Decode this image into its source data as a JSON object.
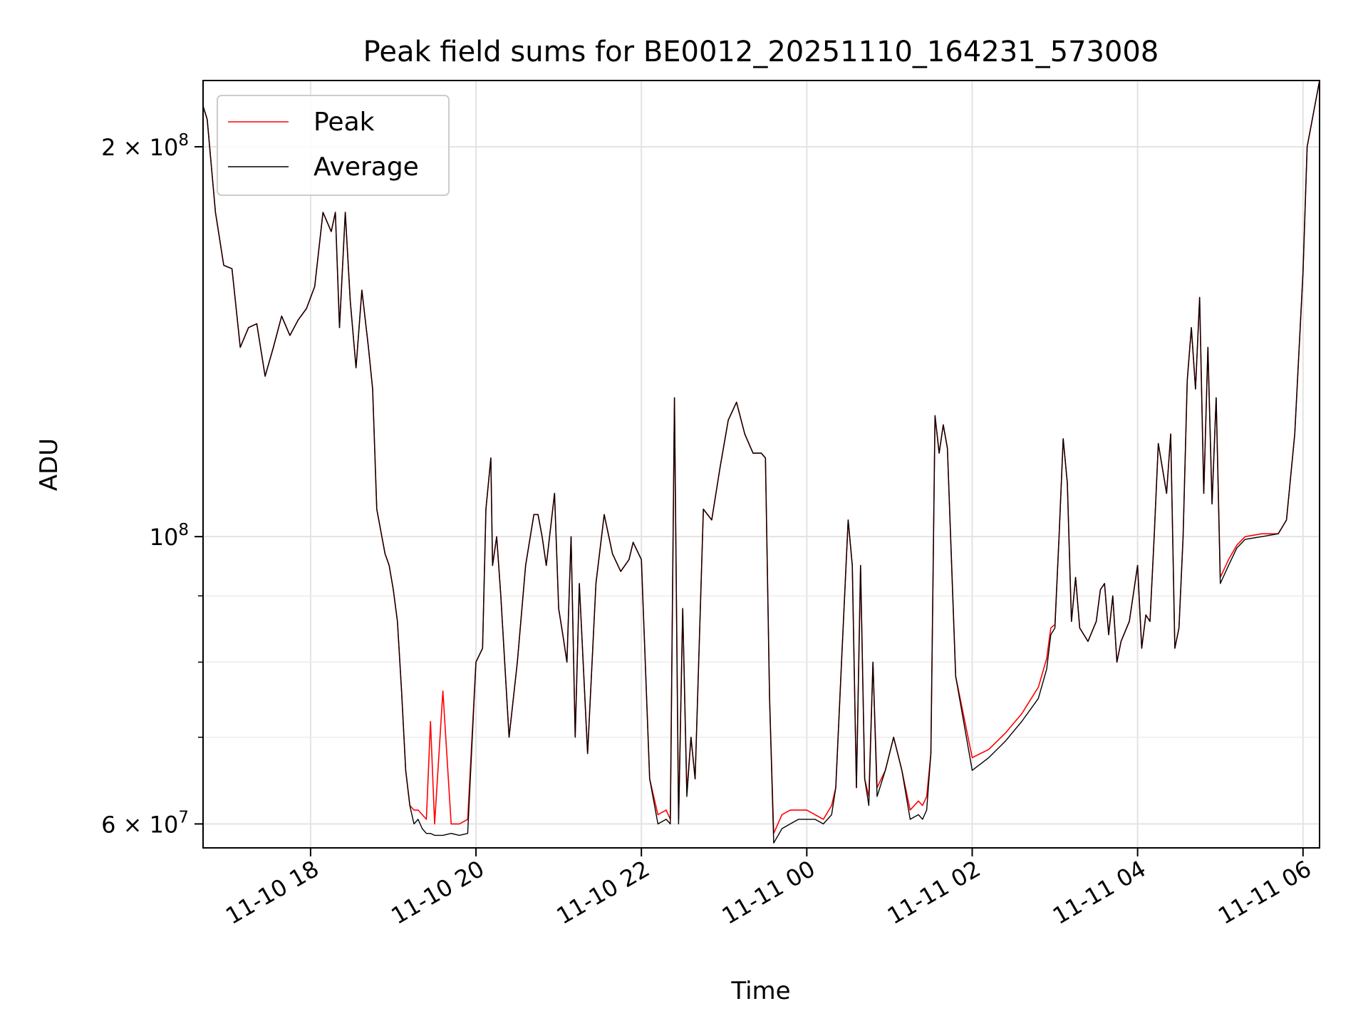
{
  "chart_data": {
    "type": "line",
    "title": "Peak field sums for BE0012_20251110_164231_573008",
    "xlabel": "Time",
    "ylabel": "ADU",
    "yscale": "log",
    "xlim_hours": [
      16.7,
      30.2
    ],
    "ylim": [
      57500000,
      225000000
    ],
    "grid": true,
    "legend_position": "upper-left",
    "x_ticks": [
      {
        "hour": 18,
        "label": "11-10 18"
      },
      {
        "hour": 20,
        "label": "11-10 20"
      },
      {
        "hour": 22,
        "label": "11-10 22"
      },
      {
        "hour": 24,
        "label": "11-11 00"
      },
      {
        "hour": 26,
        "label": "11-11 02"
      },
      {
        "hour": 28,
        "label": "11-11 04"
      },
      {
        "hour": 30,
        "label": "11-11 06"
      }
    ],
    "y_ticks": [
      {
        "value": 60000000,
        "mantissa": "6",
        "exp": "7",
        "base": "10"
      },
      {
        "value": 100000000,
        "mantissa": "",
        "exp": "8",
        "base": "10"
      },
      {
        "value": 200000000,
        "mantissa": "2",
        "exp": "8",
        "base": "10"
      }
    ],
    "y_minor_ticks": [
      70000000,
      80000000,
      90000000
    ],
    "series": [
      {
        "name": "Peak",
        "color": "#ff0000"
      },
      {
        "name": "Average",
        "color": "#000000"
      }
    ],
    "x_hours": [
      16.7,
      16.75,
      16.85,
      16.95,
      17.05,
      17.15,
      17.25,
      17.35,
      17.45,
      17.55,
      17.65,
      17.75,
      17.85,
      17.95,
      18.05,
      18.15,
      18.25,
      18.3,
      18.35,
      18.42,
      18.48,
      18.55,
      18.62,
      18.7,
      18.75,
      18.8,
      18.9,
      18.95,
      19.0,
      19.05,
      19.1,
      19.15,
      19.2,
      19.25,
      19.3,
      19.35,
      19.4,
      19.45,
      19.5,
      19.6,
      19.7,
      19.8,
      19.9,
      20.0,
      20.08,
      20.12,
      20.18,
      20.2,
      20.25,
      20.3,
      20.4,
      20.5,
      20.6,
      20.7,
      20.75,
      20.8,
      20.85,
      20.95,
      21.0,
      21.05,
      21.1,
      21.15,
      21.2,
      21.25,
      21.35,
      21.45,
      21.55,
      21.65,
      21.75,
      21.85,
      21.9,
      22.0,
      22.1,
      22.2,
      22.3,
      22.35,
      22.4,
      22.45,
      22.5,
      22.55,
      22.6,
      22.65,
      22.75,
      22.85,
      22.95,
      23.05,
      23.15,
      23.25,
      23.35,
      23.45,
      23.5,
      23.55,
      23.6,
      23.7,
      23.8,
      23.9,
      24.0,
      24.1,
      24.2,
      24.3,
      24.35,
      24.42,
      24.5,
      24.55,
      24.6,
      24.65,
      24.7,
      24.75,
      24.8,
      24.85,
      24.95,
      25.05,
      25.15,
      25.25,
      25.35,
      25.4,
      25.45,
      25.5,
      25.55,
      25.6,
      25.65,
      25.7,
      25.8,
      26.0,
      26.2,
      26.4,
      26.6,
      26.8,
      26.9,
      26.95,
      27.0,
      27.05,
      27.1,
      27.15,
      27.2,
      27.25,
      27.3,
      27.4,
      27.5,
      27.55,
      27.6,
      27.65,
      27.7,
      27.75,
      27.8,
      27.9,
      28.0,
      28.05,
      28.1,
      28.15,
      28.2,
      28.25,
      28.35,
      28.4,
      28.45,
      28.5,
      28.55,
      28.6,
      28.65,
      28.7,
      28.75,
      28.8,
      28.85,
      28.9,
      28.95,
      29.0,
      29.1,
      29.2,
      29.3,
      29.5,
      29.7,
      29.8,
      29.9,
      30.0,
      30.05,
      30.2
    ],
    "average_values": [
      215000000,
      210000000,
      178000000,
      162000000,
      161000000,
      140000000,
      145000000,
      146000000,
      133000000,
      140000000,
      148000000,
      143000000,
      147000000,
      150000000,
      156000000,
      178000000,
      172000000,
      178000000,
      145000000,
      178000000,
      152000000,
      135000000,
      155000000,
      140000000,
      130000000,
      105000000,
      97000000,
      95000000,
      91000000,
      86000000,
      76000000,
      66000000,
      62000000,
      60000000,
      60500000,
      59500000,
      59000000,
      59000000,
      58800000,
      58800000,
      59000000,
      58800000,
      59000000,
      80000000,
      82000000,
      105000000,
      115000000,
      95000000,
      100000000,
      90000000,
      70000000,
      80000000,
      95000000,
      104000000,
      104000000,
      100000000,
      95000000,
      108000000,
      88000000,
      84000000,
      80000000,
      100000000,
      70000000,
      92000000,
      68000000,
      92000000,
      104000000,
      97000000,
      94000000,
      96000000,
      99000000,
      96000000,
      65000000,
      60000000,
      60500000,
      60000000,
      128000000,
      60000000,
      88000000,
      63000000,
      70000000,
      65000000,
      105000000,
      103000000,
      113000000,
      123000000,
      127000000,
      120000000,
      116000000,
      116000000,
      115000000,
      75000000,
      58000000,
      59500000,
      60000000,
      60500000,
      60500000,
      60500000,
      60000000,
      61000000,
      64000000,
      80000000,
      103000000,
      95000000,
      64000000,
      95000000,
      65000000,
      62000000,
      80000000,
      63000000,
      66000000,
      70000000,
      66000000,
      60500000,
      61000000,
      60500000,
      61500000,
      68000000,
      124000000,
      116000000,
      122000000,
      117000000,
      78000000,
      66000000,
      67500000,
      69500000,
      72000000,
      75000000,
      79000000,
      84000000,
      85000000,
      100000000,
      119000000,
      110000000,
      86000000,
      93000000,
      85000000,
      83000000,
      86000000,
      91000000,
      92000000,
      84000000,
      90000000,
      80000000,
      83000000,
      86000000,
      95000000,
      82000000,
      87000000,
      86000000,
      100000000,
      118000000,
      108000000,
      120000000,
      82000000,
      85000000,
      100000000,
      132000000,
      145000000,
      130000000,
      153000000,
      108000000,
      140000000,
      106000000,
      128000000,
      92000000,
      95000000,
      98000000,
      99500000,
      100000000,
      100500000,
      103000000,
      120000000,
      160000000,
      200000000,
      225000000
    ],
    "peak_values": [
      215000000,
      210000000,
      178000000,
      162000000,
      161000000,
      140000000,
      145000000,
      146000000,
      133000000,
      140000000,
      148000000,
      143000000,
      147000000,
      150000000,
      156000000,
      178000000,
      172000000,
      178000000,
      145000000,
      178000000,
      152000000,
      135000000,
      155000000,
      140000000,
      130000000,
      105000000,
      97000000,
      95000000,
      91000000,
      86000000,
      76000000,
      66000000,
      62000000,
      61500000,
      61500000,
      61000000,
      60500000,
      72000000,
      60000000,
      76000000,
      60000000,
      60000000,
      60500000,
      80000000,
      82000000,
      105000000,
      115000000,
      95000000,
      100000000,
      90000000,
      70000000,
      80000000,
      95000000,
      104000000,
      104000000,
      100000000,
      95000000,
      108000000,
      88000000,
      84000000,
      80000000,
      100000000,
      70000000,
      92000000,
      68000000,
      92000000,
      104000000,
      97000000,
      94000000,
      96000000,
      99000000,
      96000000,
      65000000,
      61000000,
      61500000,
      60500000,
      128000000,
      60500000,
      88000000,
      63500000,
      70000000,
      65000000,
      105000000,
      103000000,
      113000000,
      123000000,
      127000000,
      120000000,
      116000000,
      116000000,
      115000000,
      75000000,
      59000000,
      61000000,
      61500000,
      61500000,
      61500000,
      61000000,
      60500000,
      62000000,
      64000000,
      80000000,
      103000000,
      95000000,
      64000000,
      95000000,
      65000000,
      63000000,
      80000000,
      64000000,
      66000000,
      70000000,
      66000000,
      61500000,
      62500000,
      62000000,
      63000000,
      68000000,
      124000000,
      116000000,
      122000000,
      117000000,
      78000000,
      67500000,
      68500000,
      70500000,
      73000000,
      76500000,
      80500000,
      85000000,
      85500000,
      100000000,
      119000000,
      110000000,
      86000000,
      93000000,
      85000000,
      83000000,
      86000000,
      91000000,
      92000000,
      84000000,
      90000000,
      80000000,
      83000000,
      86000000,
      95000000,
      82000000,
      87000000,
      86000000,
      100000000,
      118000000,
      108000000,
      120000000,
      82000000,
      85000000,
      100000000,
      132000000,
      145000000,
      130000000,
      153000000,
      108000000,
      140000000,
      106000000,
      128000000,
      93000000,
      96000000,
      98500000,
      100000000,
      100500000,
      100500000,
      103000000,
      120000000,
      160000000,
      200000000,
      225000000
    ]
  }
}
